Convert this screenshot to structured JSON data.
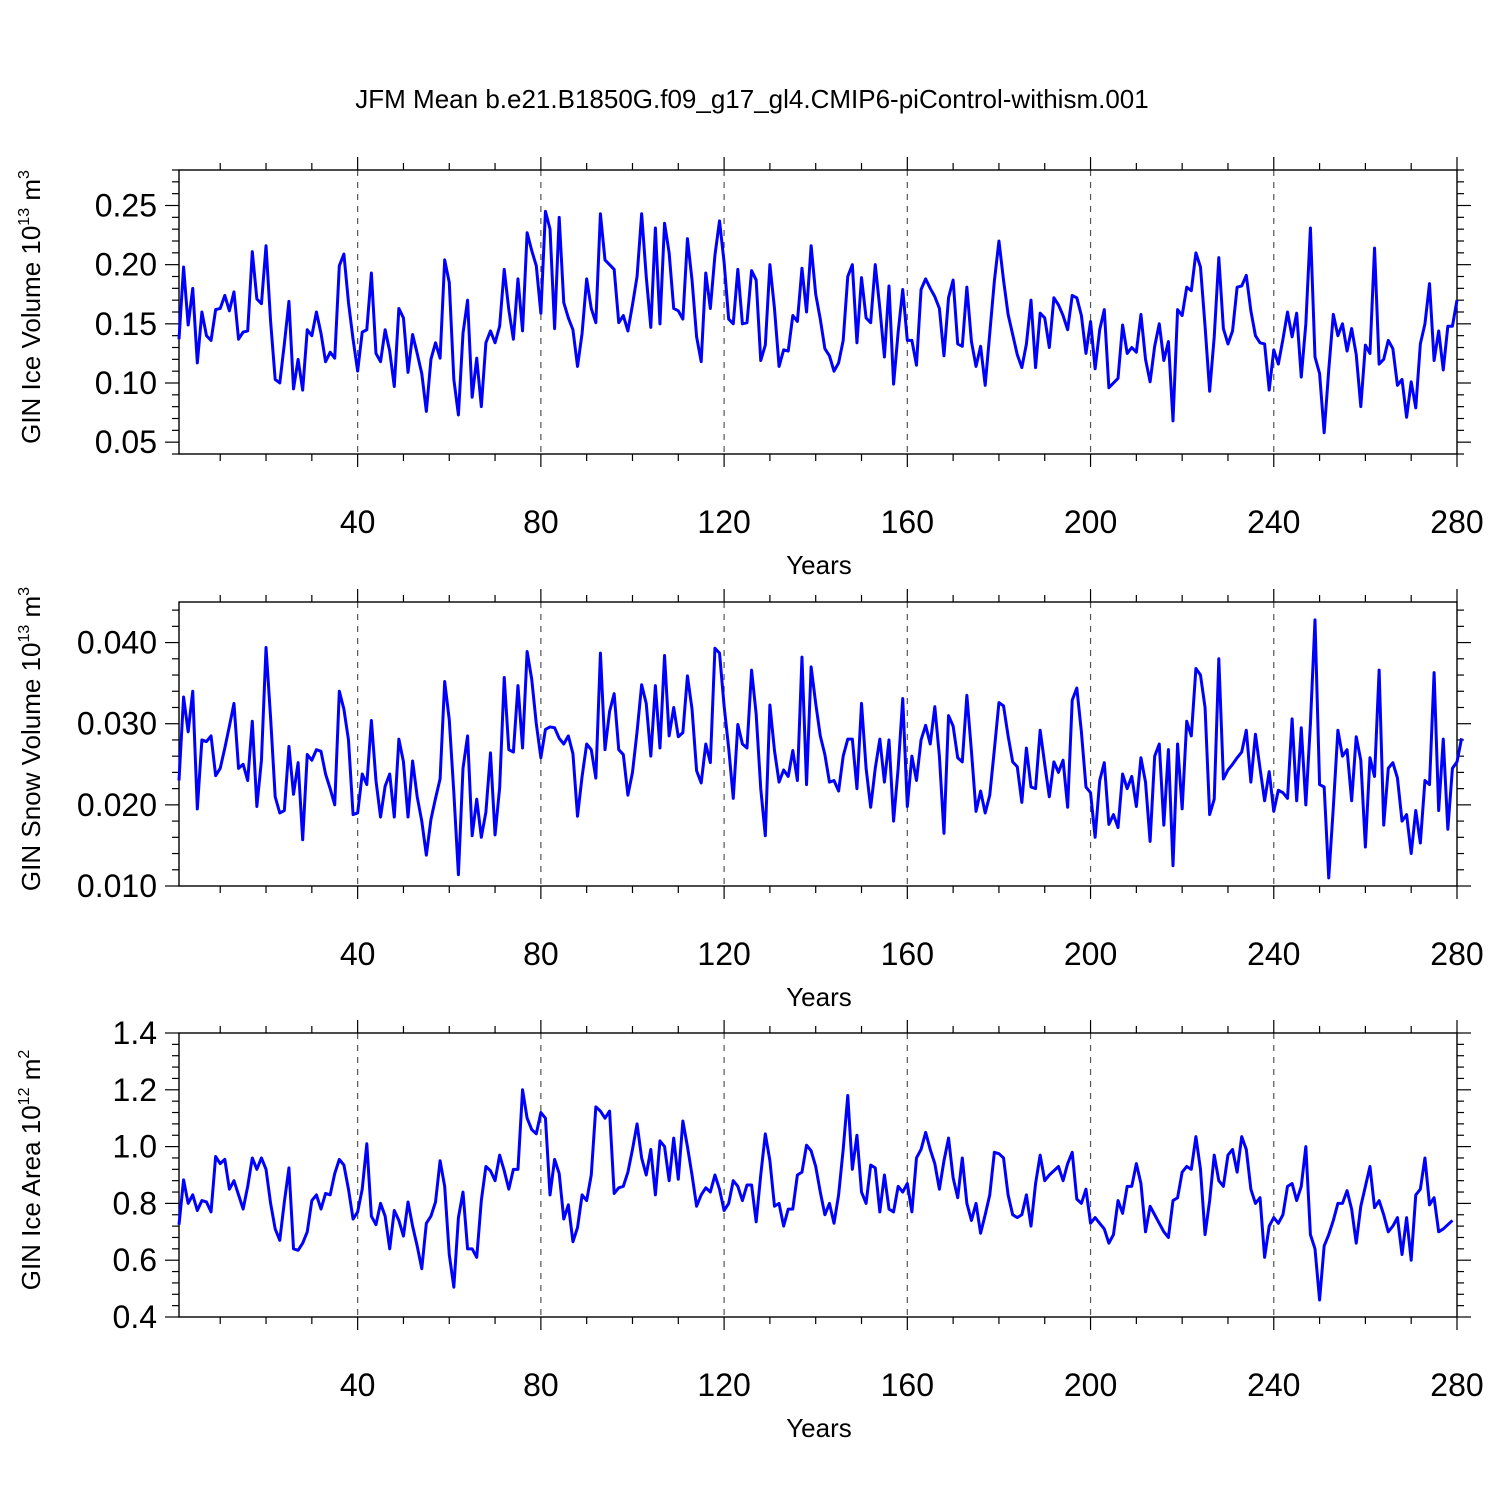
{
  "chart_data": [
    {
      "type": "line",
      "title": "JFM Mean b.e21.B1850G.f09_g17_gl4.CMIP6-piControl-withism.001",
      "xlabel": "Years",
      "ylabel_main": "GIN Ice Volume 10",
      "ylabel_exp": "13",
      "ylabel_unit": " m",
      "ylabel_unit_exp": "3",
      "xlim": [
        1,
        280
      ],
      "ylim": [
        0.04,
        0.28
      ],
      "xticks": [
        40,
        80,
        120,
        160,
        200,
        240,
        280
      ],
      "xtick_labels": [
        "40",
        "80",
        "120",
        "160",
        "200",
        "240",
        "280"
      ],
      "yticks": [
        0.05,
        0.1,
        0.15,
        0.2,
        0.25
      ],
      "ytick_labels": [
        "0.05",
        "0.10",
        "0.15",
        "0.20",
        "0.25"
      ],
      "series": [
        {
          "name": "GIN Ice Volume",
          "color": "#0000ff",
          "values": [
            0.137,
            0.198,
            0.149,
            0.18,
            0.117,
            0.16,
            0.14,
            0.136,
            0.162,
            0.163,
            0.174,
            0.161,
            0.177,
            0.137,
            0.143,
            0.144,
            0.211,
            0.171,
            0.167,
            0.216,
            0.152,
            0.103,
            0.1,
            0.133,
            0.169,
            0.095,
            0.12,
            0.094,
            0.145,
            0.14,
            0.16,
            0.142,
            0.118,
            0.126,
            0.121,
            0.199,
            0.209,
            0.168,
            0.137,
            0.11,
            0.143,
            0.145,
            0.193,
            0.125,
            0.118,
            0.145,
            0.127,
            0.097,
            0.163,
            0.155,
            0.109,
            0.141,
            0.125,
            0.108,
            0.076,
            0.12,
            0.134,
            0.121,
            0.204,
            0.185,
            0.103,
            0.073,
            0.142,
            0.17,
            0.088,
            0.121,
            0.08,
            0.134,
            0.144,
            0.134,
            0.148,
            0.196,
            0.162,
            0.137,
            0.188,
            0.144,
            0.227,
            0.212,
            0.199,
            0.159,
            0.245,
            0.23,
            0.146,
            0.24,
            0.168,
            0.155,
            0.145,
            0.114,
            0.142,
            0.188,
            0.163,
            0.151,
            0.243,
            0.204,
            0.2,
            0.196,
            0.151,
            0.157,
            0.144,
            0.166,
            0.19,
            0.243,
            0.19,
            0.147,
            0.231,
            0.15,
            0.235,
            0.21,
            0.163,
            0.161,
            0.154,
            0.222,
            0.187,
            0.139,
            0.118,
            0.193,
            0.163,
            0.208,
            0.237,
            0.202,
            0.154,
            0.15,
            0.196,
            0.15,
            0.151,
            0.195,
            0.187,
            0.119,
            0.132,
            0.2,
            0.163,
            0.114,
            0.128,
            0.127,
            0.157,
            0.152,
            0.197,
            0.16,
            0.216,
            0.175,
            0.154,
            0.129,
            0.123,
            0.11,
            0.117,
            0.136,
            0.19,
            0.2,
            0.134,
            0.189,
            0.155,
            0.151,
            0.2,
            0.163,
            0.122,
            0.182,
            0.099,
            0.143,
            0.179,
            0.136,
            0.136,
            0.115,
            0.179,
            0.188,
            0.18,
            0.173,
            0.163,
            0.123,
            0.172,
            0.187,
            0.133,
            0.131,
            0.181,
            0.135,
            0.114,
            0.131,
            0.098,
            0.142,
            0.186,
            0.22,
            0.187,
            0.158,
            0.141,
            0.124,
            0.113,
            0.133,
            0.17,
            0.113,
            0.159,
            0.155,
            0.13,
            0.172,
            0.166,
            0.157,
            0.145,
            0.174,
            0.172,
            0.157,
            0.125,
            0.152,
            0.112,
            0.145,
            0.162,
            0.096,
            0.1,
            0.104,
            0.149,
            0.125,
            0.13,
            0.126,
            0.158,
            0.12,
            0.101,
            0.131,
            0.15,
            0.119,
            0.135,
            0.068,
            0.162,
            0.157,
            0.181,
            0.178,
            0.21,
            0.198,
            0.148,
            0.093,
            0.139,
            0.206,
            0.146,
            0.133,
            0.144,
            0.181,
            0.182,
            0.191,
            0.161,
            0.14,
            0.134,
            0.133,
            0.094,
            0.128,
            0.116,
            0.137,
            0.16,
            0.139,
            0.159,
            0.105,
            0.15,
            0.231,
            0.122,
            0.108,
            0.058,
            0.111,
            0.158,
            0.14,
            0.15,
            0.127,
            0.146,
            0.124,
            0.08,
            0.132,
            0.125,
            0.214,
            0.116,
            0.12,
            0.136,
            0.129,
            0.098,
            0.103,
            0.071,
            0.101,
            0.079,
            0.133,
            0.15,
            0.184,
            0.119,
            0.144,
            0.111,
            0.148,
            0.148,
            0.17
          ]
        }
      ]
    },
    {
      "type": "line",
      "title": "",
      "xlabel": "Years",
      "ylabel_main": "GIN Snow Volume 10",
      "ylabel_exp": "13",
      "ylabel_unit": " m",
      "ylabel_unit_exp": "3",
      "xlim": [
        1,
        280
      ],
      "ylim": [
        0.01,
        0.045
      ],
      "xticks": [
        40,
        80,
        120,
        160,
        200,
        240,
        280
      ],
      "xtick_labels": [
        "40",
        "80",
        "120",
        "160",
        "200",
        "240",
        "280"
      ],
      "yticks": [
        0.01,
        0.02,
        0.03,
        0.04
      ],
      "ytick_labels": [
        "0.010",
        "0.020",
        "0.030",
        "0.040"
      ],
      "series": [
        {
          "name": "GIN Snow Volume",
          "color": "#0000ff",
          "values": [
            0.023,
            0.0333,
            0.029,
            0.034,
            0.0195,
            0.028,
            0.0278,
            0.0285,
            0.0236,
            0.0245,
            0.027,
            0.0297,
            0.0325,
            0.0245,
            0.025,
            0.023,
            0.0303,
            0.0198,
            0.0255,
            0.0394,
            0.0307,
            0.021,
            0.019,
            0.0193,
            0.0272,
            0.0213,
            0.0252,
            0.0157,
            0.0262,
            0.0255,
            0.0268,
            0.0266,
            0.0238,
            0.022,
            0.02,
            0.034,
            0.0318,
            0.028,
            0.0188,
            0.019,
            0.0238,
            0.0225,
            0.0304,
            0.023,
            0.0185,
            0.0223,
            0.0238,
            0.0185,
            0.0281,
            0.0253,
            0.0185,
            0.0254,
            0.021,
            0.018,
            0.0138,
            0.0182,
            0.0208,
            0.0232,
            0.0352,
            0.0305,
            0.0215,
            0.0114,
            0.0245,
            0.0285,
            0.0162,
            0.0207,
            0.016,
            0.0191,
            0.0264,
            0.0163,
            0.0221,
            0.0357,
            0.0268,
            0.0265,
            0.0347,
            0.027,
            0.0389,
            0.0355,
            0.03,
            0.0258,
            0.0293,
            0.0296,
            0.0295,
            0.0282,
            0.0275,
            0.0285,
            0.0263,
            0.0186,
            0.0235,
            0.0275,
            0.0268,
            0.0233,
            0.0387,
            0.0268,
            0.0315,
            0.0337,
            0.0268,
            0.0262,
            0.0212,
            0.024,
            0.029,
            0.0348,
            0.0325,
            0.026,
            0.0347,
            0.027,
            0.0384,
            0.0285,
            0.032,
            0.0284,
            0.0289,
            0.0359,
            0.0318,
            0.0242,
            0.0227,
            0.0275,
            0.0252,
            0.0393,
            0.0387,
            0.0322,
            0.027,
            0.0208,
            0.0299,
            0.0275,
            0.027,
            0.0366,
            0.0312,
            0.022,
            0.0162,
            0.0323,
            0.0267,
            0.0228,
            0.0243,
            0.0235,
            0.0267,
            0.023,
            0.0382,
            0.0225,
            0.037,
            0.0325,
            0.0285,
            0.0262,
            0.0228,
            0.023,
            0.0217,
            0.026,
            0.0281,
            0.0281,
            0.022,
            0.0325,
            0.0245,
            0.0197,
            0.0245,
            0.0281,
            0.0228,
            0.028,
            0.018,
            0.0245,
            0.0331,
            0.0198,
            0.026,
            0.023,
            0.028,
            0.0298,
            0.0275,
            0.0321,
            0.026,
            0.0165,
            0.031,
            0.0297,
            0.0258,
            0.0253,
            0.0335,
            0.0266,
            0.0192,
            0.0217,
            0.019,
            0.0212,
            0.0268,
            0.0326,
            0.0322,
            0.0285,
            0.0253,
            0.0247,
            0.0203,
            0.027,
            0.0222,
            0.022,
            0.0292,
            0.025,
            0.021,
            0.0253,
            0.024,
            0.0255,
            0.0197,
            0.0329,
            0.0344,
            0.029,
            0.0222,
            0.0215,
            0.016,
            0.023,
            0.0252,
            0.0176,
            0.0188,
            0.0172,
            0.0238,
            0.022,
            0.0235,
            0.0198,
            0.0258,
            0.0228,
            0.0155,
            0.026,
            0.0275,
            0.0175,
            0.0268,
            0.0125,
            0.0275,
            0.0195,
            0.0303,
            0.0285,
            0.0368,
            0.036,
            0.032,
            0.0188,
            0.0207,
            0.038,
            0.0232,
            0.0243,
            0.025,
            0.0258,
            0.0265,
            0.0292,
            0.0228,
            0.0287,
            0.0245,
            0.0205,
            0.0241,
            0.0192,
            0.0218,
            0.0215,
            0.0208,
            0.0306,
            0.0205,
            0.0295,
            0.02,
            0.03,
            0.0428,
            0.0225,
            0.0222,
            0.011,
            0.0197,
            0.0292,
            0.026,
            0.0268,
            0.0205,
            0.0284,
            0.0255,
            0.0148,
            0.0258,
            0.0235,
            0.0366,
            0.0175,
            0.0245,
            0.0252,
            0.0233,
            0.018,
            0.0188,
            0.014,
            0.0193,
            0.0153,
            0.023,
            0.0225,
            0.0363,
            0.0193,
            0.0281,
            0.017,
            0.0245,
            0.0253,
            0.0282
          ]
        }
      ]
    },
    {
      "type": "line",
      "title": "",
      "xlabel": "Years",
      "ylabel_main": "GIN Ice Area 10",
      "ylabel_exp": "12",
      "ylabel_unit": " m",
      "ylabel_unit_exp": "2",
      "xlim": [
        1,
        280
      ],
      "ylim": [
        0.4,
        1.4
      ],
      "xticks": [
        40,
        80,
        120,
        160,
        200,
        240,
        280
      ],
      "xtick_labels": [
        "40",
        "80",
        "120",
        "160",
        "200",
        "240",
        "280"
      ],
      "yticks": [
        0.4,
        0.6,
        0.8,
        1.0,
        1.2,
        1.4
      ],
      "ytick_labels": [
        "0.4",
        "0.6",
        "0.8",
        "1.0",
        "1.2",
        "1.4"
      ],
      "series": [
        {
          "name": "GIN Ice Area",
          "color": "#0000ff",
          "values": [
            0.725,
            0.883,
            0.8,
            0.83,
            0.775,
            0.81,
            0.805,
            0.77,
            0.965,
            0.94,
            0.955,
            0.85,
            0.88,
            0.83,
            0.78,
            0.86,
            0.96,
            0.92,
            0.96,
            0.92,
            0.8,
            0.71,
            0.67,
            0.805,
            0.925,
            0.64,
            0.635,
            0.66,
            0.7,
            0.81,
            0.83,
            0.78,
            0.835,
            0.83,
            0.905,
            0.955,
            0.935,
            0.85,
            0.745,
            0.77,
            0.85,
            1.01,
            0.755,
            0.725,
            0.8,
            0.755,
            0.64,
            0.775,
            0.74,
            0.685,
            0.805,
            0.72,
            0.65,
            0.57,
            0.73,
            0.755,
            0.805,
            0.95,
            0.86,
            0.62,
            0.505,
            0.75,
            0.84,
            0.64,
            0.64,
            0.61,
            0.81,
            0.93,
            0.915,
            0.88,
            0.97,
            0.915,
            0.85,
            0.92,
            0.92,
            1.2,
            1.1,
            1.06,
            1.045,
            1.12,
            1.1,
            0.83,
            0.955,
            0.905,
            0.745,
            0.795,
            0.665,
            0.715,
            0.83,
            0.81,
            0.9,
            1.14,
            1.125,
            1.1,
            1.125,
            0.835,
            0.855,
            0.86,
            0.91,
            0.99,
            1.08,
            0.96,
            0.9,
            0.99,
            0.83,
            1.02,
            1.0,
            0.88,
            1.03,
            0.885,
            1.09,
            1.0,
            0.9,
            0.79,
            0.83,
            0.855,
            0.84,
            0.9,
            0.85,
            0.775,
            0.8,
            0.88,
            0.86,
            0.81,
            0.865,
            0.865,
            0.735,
            0.9,
            1.045,
            0.95,
            0.79,
            0.8,
            0.72,
            0.78,
            0.78,
            0.9,
            0.91,
            1.005,
            0.985,
            0.93,
            0.84,
            0.76,
            0.8,
            0.73,
            0.83,
            0.99,
            1.18,
            0.92,
            1.04,
            0.84,
            0.8,
            0.935,
            0.925,
            0.77,
            0.9,
            0.78,
            0.77,
            0.86,
            0.84,
            0.87,
            0.77,
            0.96,
            0.99,
            1.05,
            0.99,
            0.94,
            0.85,
            0.95,
            1.03,
            0.89,
            0.82,
            0.96,
            0.8,
            0.74,
            0.8,
            0.695,
            0.76,
            0.83,
            0.98,
            0.975,
            0.96,
            0.83,
            0.76,
            0.75,
            0.76,
            0.83,
            0.72,
            0.87,
            0.97,
            0.88,
            0.9,
            0.915,
            0.93,
            0.88,
            0.94,
            0.98,
            0.815,
            0.8,
            0.85,
            0.73,
            0.75,
            0.73,
            0.71,
            0.66,
            0.69,
            0.81,
            0.765,
            0.86,
            0.86,
            0.94,
            0.87,
            0.7,
            0.79,
            0.76,
            0.73,
            0.7,
            0.68,
            0.81,
            0.82,
            0.91,
            0.93,
            0.92,
            1.035,
            0.92,
            0.69,
            0.81,
            0.97,
            0.88,
            0.86,
            0.97,
            0.99,
            0.91,
            1.035,
            0.99,
            0.85,
            0.8,
            0.82,
            0.61,
            0.72,
            0.75,
            0.73,
            0.76,
            0.86,
            0.87,
            0.81,
            0.86,
            1.0,
            0.69,
            0.64,
            0.46,
            0.65,
            0.69,
            0.74,
            0.8,
            0.8,
            0.845,
            0.78,
            0.66,
            0.79,
            0.86,
            0.93,
            0.785,
            0.81,
            0.76,
            0.7,
            0.72,
            0.75,
            0.62,
            0.75,
            0.6,
            0.83,
            0.85,
            0.96,
            0.795,
            0.82,
            0.7,
            0.71,
            0.725,
            0.74
          ]
        }
      ]
    }
  ]
}
